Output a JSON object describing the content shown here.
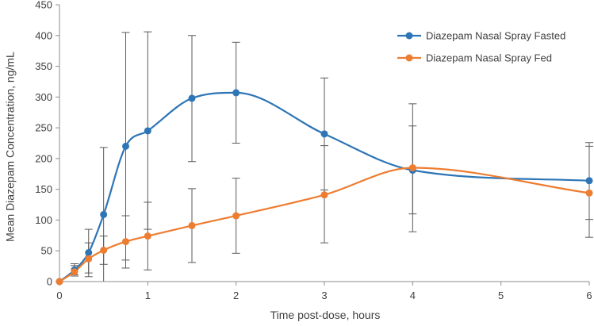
{
  "chart_data": {
    "type": "line",
    "title": "",
    "xlabel": "Time post-dose, hours",
    "ylabel": "Mean Diazepam Concentration, ng/mL",
    "xlim": [
      0,
      6
    ],
    "ylim": [
      0,
      450
    ],
    "x_ticks": [
      0,
      1,
      2,
      3,
      4,
      5,
      6
    ],
    "y_ticks": [
      0,
      50,
      100,
      150,
      200,
      250,
      300,
      350,
      400,
      450
    ],
    "grid": false,
    "legend_position": "top-right",
    "series": [
      {
        "name": "Diazepam Nasal Spray Fasted",
        "color": "#1F77B4",
        "line_color": "#2E75B6",
        "x": [
          0,
          0.17,
          0.33,
          0.5,
          0.75,
          1,
          1.5,
          2,
          3,
          4,
          6
        ],
        "values": [
          0,
          19,
          47,
          109,
          220,
          245,
          298,
          307,
          240,
          181,
          164
        ],
        "error_lower": [
          0,
          9,
          14,
          0,
          35,
          85,
          195,
          225,
          149,
          81,
          101
        ],
        "error_upper": [
          0,
          29,
          85,
          218,
          405,
          406,
          400,
          389,
          331,
          289,
          226
        ]
      },
      {
        "name": "Diazepam Nasal Spray Fed",
        "color": "#ED7D31",
        "line_color": "#ED7D31",
        "x": [
          0,
          0.17,
          0.33,
          0.5,
          0.75,
          1,
          1.5,
          2,
          3,
          4,
          6
        ],
        "values": [
          0,
          16,
          37,
          51,
          65,
          74,
          91,
          107,
          141,
          185,
          144
        ],
        "error_lower": [
          0,
          11,
          8,
          28,
          22,
          19,
          31,
          46,
          63,
          110,
          72
        ],
        "error_upper": [
          0,
          26,
          63,
          74,
          107,
          129,
          151,
          168,
          221,
          253,
          220
        ]
      }
    ]
  }
}
